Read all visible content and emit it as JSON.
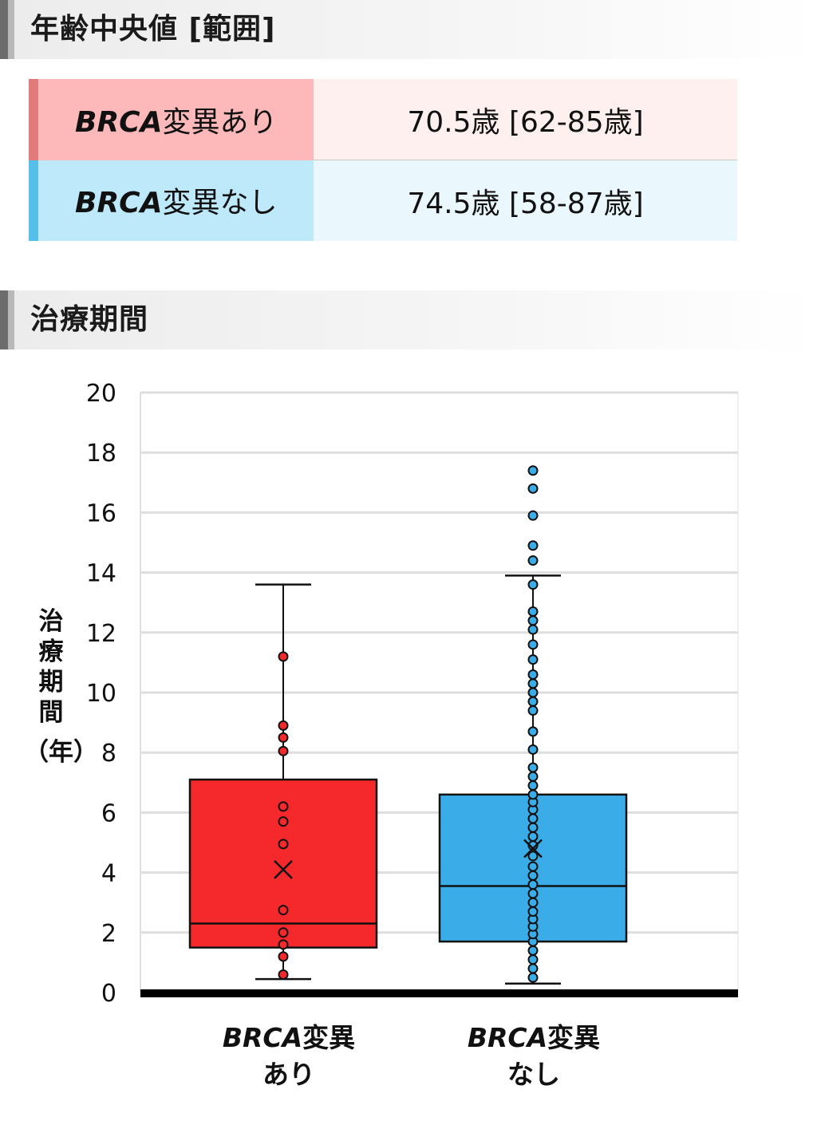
{
  "age_section": {
    "title": "年齢中央値 [範囲]",
    "rows": [
      {
        "brca": "BRCA",
        "label_rest": "変異あり",
        "value": "70.5歳 [62-85歳]",
        "color": "#fdb9b9"
      },
      {
        "brca": "BRCA",
        "label_rest": "変異なし",
        "value": "74.5歳 [58-87歳]",
        "color": "#bde9fb"
      }
    ]
  },
  "duration_section": {
    "title": "治療期間"
  },
  "chart_data": {
    "type": "boxplot",
    "ylabel_vertical": [
      "治",
      "療",
      "期",
      "間"
    ],
    "ylabel_unit": "（年）",
    "ylim": [
      0,
      20
    ],
    "yticks": [
      "0",
      "2",
      "4",
      "6",
      "8",
      "10",
      "12",
      "14",
      "16",
      "18",
      "20"
    ],
    "grid": true,
    "categories": [
      {
        "line1_brca": "BRCA",
        "line1_rest": "変異",
        "line2": "あり"
      },
      {
        "line1_brca": "BRCA",
        "line1_rest": "変異",
        "line2": "なし"
      }
    ],
    "series": [
      {
        "color": "#f5282c",
        "whisker_low": 0.45,
        "q1": 1.5,
        "median": 2.3,
        "q3": 7.1,
        "whisker_high": 13.6,
        "mean": 4.1,
        "points": [
          0.6,
          1.2,
          1.6,
          2.0,
          2.75,
          4.95,
          5.7,
          6.2,
          8.05,
          8.5,
          8.9,
          11.2
        ]
      },
      {
        "color": "#3aace8",
        "whisker_low": 0.3,
        "q1": 1.7,
        "median": 3.55,
        "q3": 6.6,
        "whisker_high": 13.9,
        "mean": 4.8,
        "points": [
          0.5,
          0.8,
          1.1,
          1.4,
          1.7,
          1.95,
          2.2,
          2.45,
          2.7,
          3.0,
          3.3,
          3.6,
          3.9,
          4.2,
          4.55,
          4.9,
          5.2,
          5.5,
          5.8,
          6.1,
          6.35,
          6.6,
          6.9,
          7.2,
          7.5,
          8.1,
          8.7,
          9.4,
          9.7,
          10.0,
          10.3,
          10.6,
          11.1,
          11.6,
          12.1,
          12.4,
          12.7,
          13.6,
          14.4,
          14.9,
          15.9,
          16.8,
          17.4
        ]
      }
    ]
  }
}
